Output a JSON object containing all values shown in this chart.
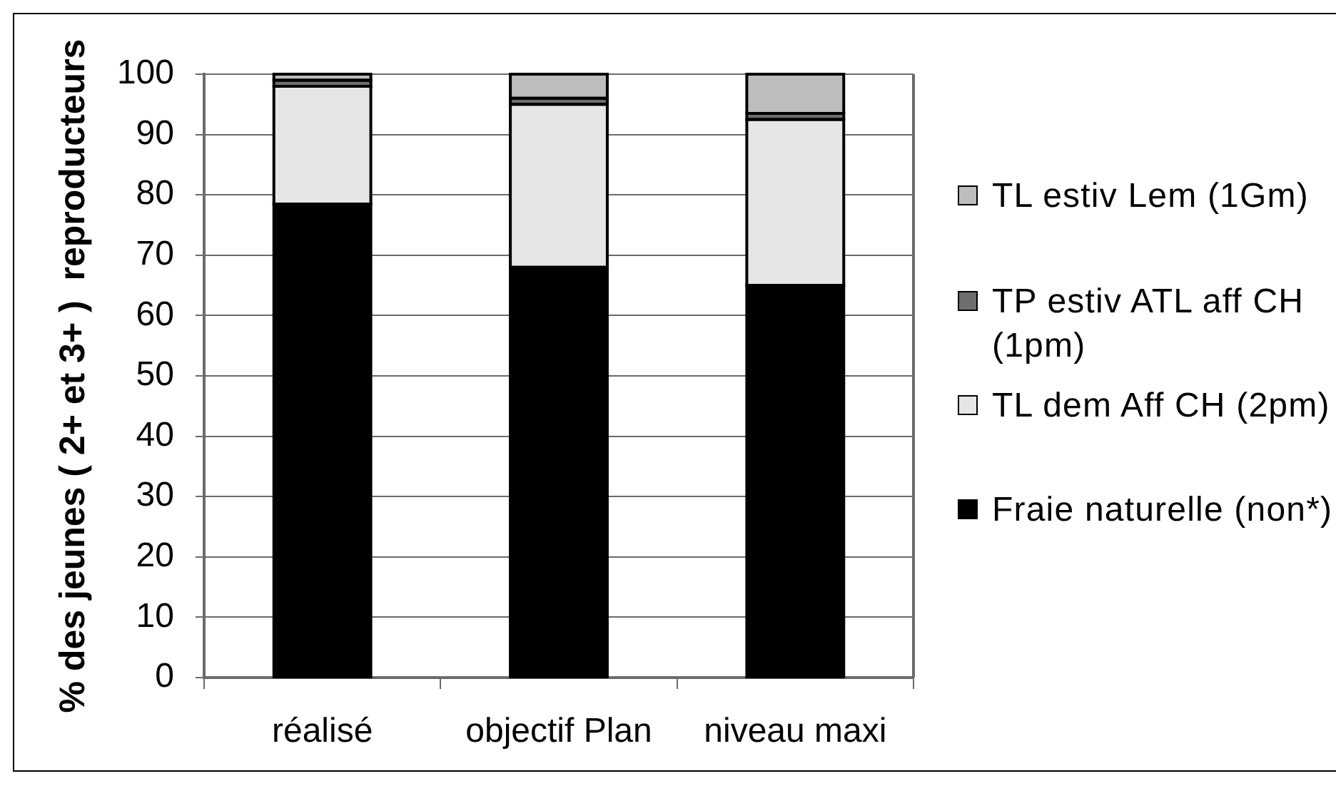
{
  "chart_data": {
    "type": "bar",
    "ylabel": "% des jeunes ( 2+ et 3+ )  reproducteurs",
    "categories": [
      "réalisé",
      "objectif Plan",
      "niveau maxi"
    ],
    "series": [
      {
        "name": "Fraie naturelle (non*)",
        "color": "#000000",
        "values": [
          78.5,
          68,
          65
        ]
      },
      {
        "name": "TL dem Aff CH (2pm)",
        "color": "#e6e6e6",
        "values": [
          19.5,
          27,
          27.5
        ]
      },
      {
        "name": "TP estiv ATL aff CH (1pm)",
        "color": "#6e6e6e",
        "values": [
          1,
          1,
          1
        ]
      },
      {
        "name": "TL estiv Lem (1Gm)",
        "color": "#bdbdbd",
        "values": [
          1,
          4,
          6.5
        ]
      }
    ],
    "stacked": true,
    "ylim": [
      0,
      100
    ],
    "yticks": [
      0,
      10,
      20,
      30,
      40,
      50,
      60,
      70,
      80,
      90,
      100
    ],
    "grid": "y",
    "legend": "right"
  }
}
